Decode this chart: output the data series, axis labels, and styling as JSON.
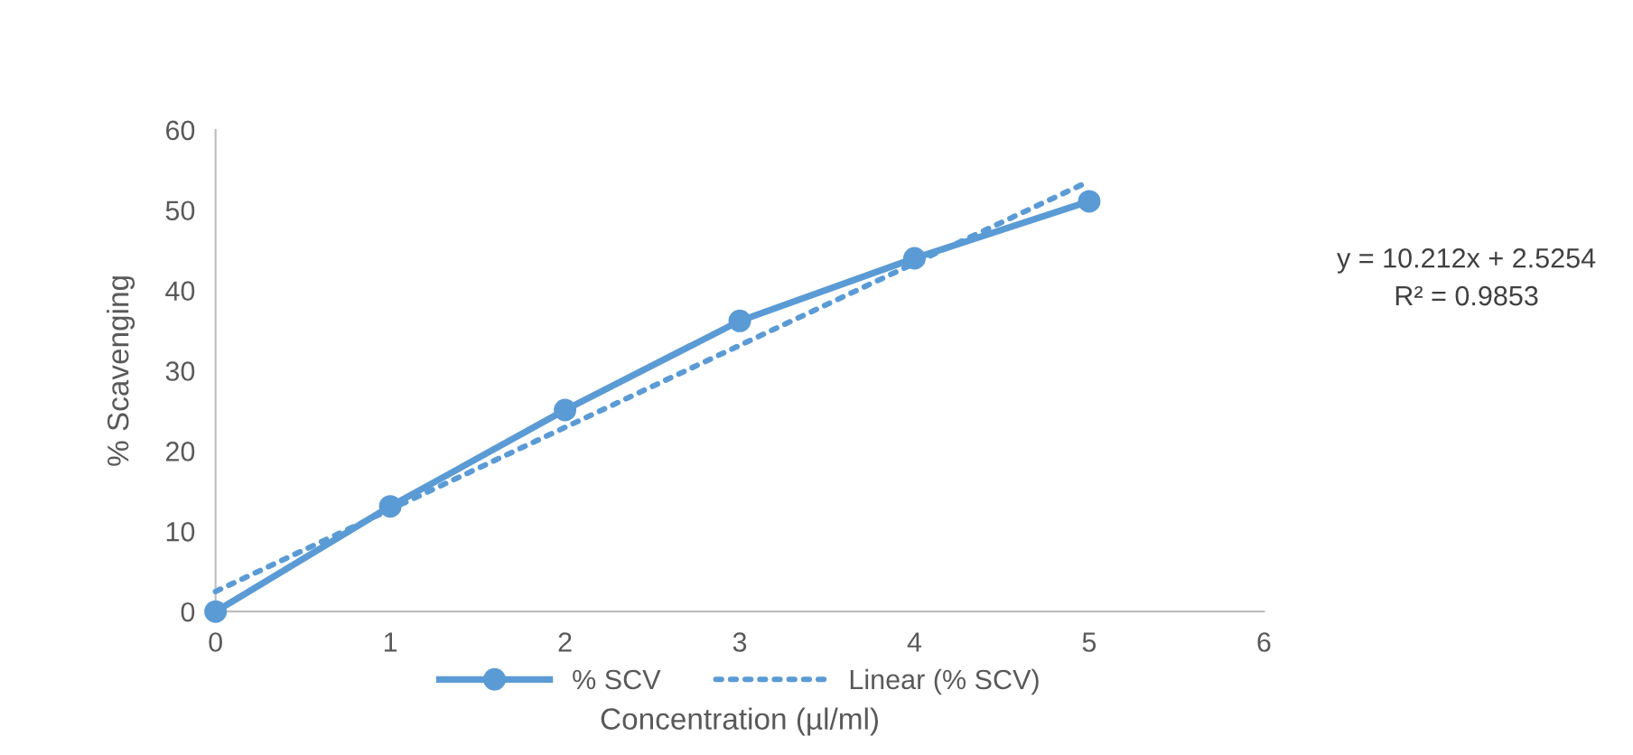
{
  "chart_data": {
    "type": "line",
    "xlabel": "Concentration (µl/ml)",
    "ylabel": "% Scavenging",
    "xlim": [
      0,
      6
    ],
    "xticks": [
      0,
      1,
      2,
      3,
      4,
      5,
      6
    ],
    "ylim": [
      0,
      60
    ],
    "yticks": [
      0,
      10,
      20,
      30,
      40,
      50,
      60
    ],
    "grid": false,
    "legend": "bottom",
    "series": [
      {
        "name": "% SCV",
        "color": "#5b9bd5",
        "x": [
          0,
          1,
          2,
          3,
          4,
          5
        ],
        "values": [
          0,
          13.1,
          25.1,
          36.2,
          44.0,
          51.1
        ],
        "marker": "circle",
        "line_style": "solid"
      },
      {
        "name": "Linear (% SCV)",
        "color": "#5b9bd5",
        "x": [
          0,
          5
        ],
        "values": [
          2.5,
          53.6
        ],
        "marker": "none",
        "line_style": "dotted"
      }
    ],
    "annotations": [
      "y = 10.212x + 2.5254\nR² = 0.9853"
    ]
  }
}
